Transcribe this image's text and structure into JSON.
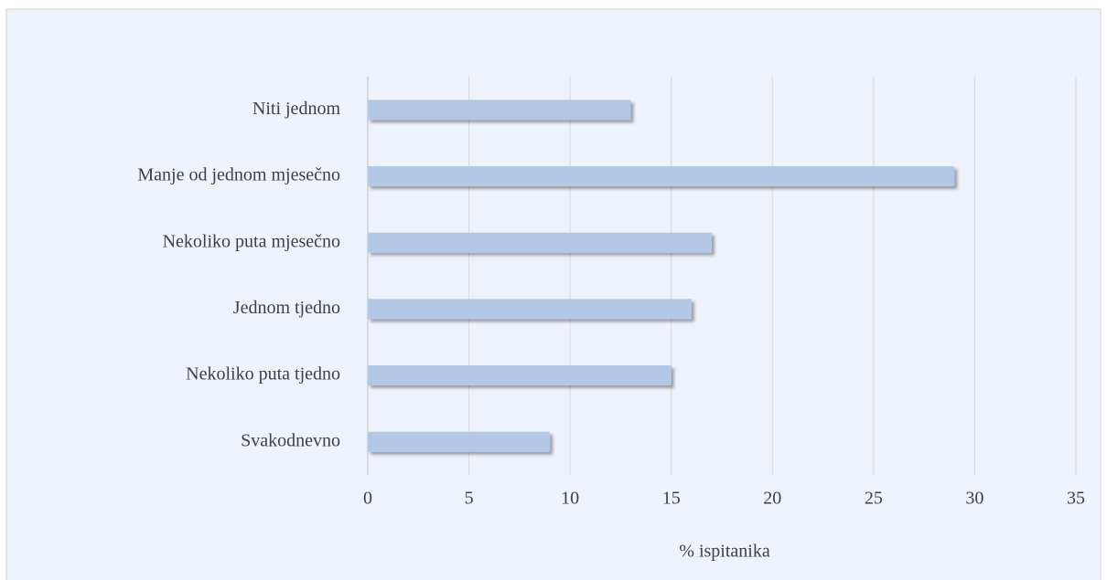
{
  "chart_data": {
    "type": "bar",
    "orientation": "horizontal",
    "categories": [
      "Niti jednom",
      "Manje od jednom mjesečno",
      "Nekoliko puta mjesečno",
      "Jednom tjedno",
      "Nekoliko puta tjedno",
      "Svakodnevno"
    ],
    "values": [
      13,
      29,
      17,
      16,
      15,
      9
    ],
    "color": "#b4c7e7",
    "xlabel": "% ispitanika",
    "xlim": [
      0,
      35
    ],
    "xticks": [
      0,
      5,
      10,
      15,
      20,
      25,
      30,
      35
    ],
    "grid": true
  }
}
